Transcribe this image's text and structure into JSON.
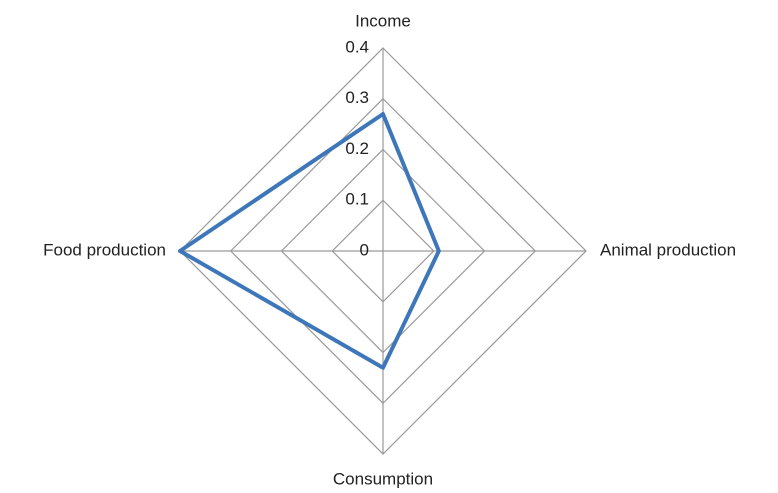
{
  "chart_data": {
    "type": "radar",
    "categories": [
      "Income",
      "Animal production",
      "Consumption",
      "Food production"
    ],
    "series": [
      {
        "color": "#3d77b9",
        "values": [
          0.27,
          0.11,
          0.23,
          0.4
        ]
      }
    ],
    "ylim": [
      0,
      0.4
    ],
    "yticks": [
      0,
      0.1,
      0.2,
      0.3,
      0.4
    ],
    "grid": true
  }
}
